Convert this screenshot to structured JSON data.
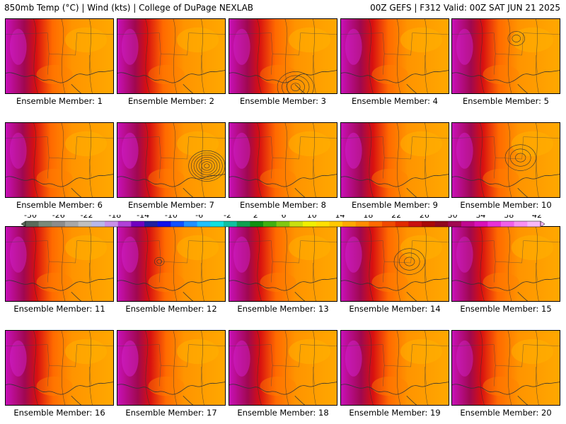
{
  "header": {
    "left_title": "850mb Temp (°C) | Wind (kts) | College of DuPage NEXLAB",
    "right_title": "00Z GEFS | F312 Valid: 00Z SAT JUN 21 2025"
  },
  "panels": [
    {
      "label": "Ensemble Member: 1",
      "warmth": 0.55,
      "vortex": "none"
    },
    {
      "label": "Ensemble Member: 2",
      "warmth": 0.45,
      "vortex": "none"
    },
    {
      "label": "Ensemble Member: 3",
      "warmth": 0.5,
      "vortex": "south"
    },
    {
      "label": "Ensemble Member: 4",
      "warmth": 0.6,
      "vortex": "none"
    },
    {
      "label": "Ensemble Member: 5",
      "warmth": 0.55,
      "vortex": "north"
    },
    {
      "label": "Ensemble Member: 6",
      "warmth": 0.4,
      "vortex": "none"
    },
    {
      "label": "Ensemble Member: 7",
      "warmth": 0.65,
      "vortex": "strong"
    },
    {
      "label": "Ensemble Member: 8",
      "warmth": 0.5,
      "vortex": "none"
    },
    {
      "label": "Ensemble Member: 9",
      "warmth": 0.65,
      "vortex": "none"
    },
    {
      "label": "Ensemble Member: 10",
      "warmth": 0.55,
      "vortex": "center"
    },
    {
      "label": "Ensemble Member: 11",
      "warmth": 0.5,
      "vortex": "none"
    },
    {
      "label": "Ensemble Member: 12",
      "warmth": 0.6,
      "vortex": "small"
    },
    {
      "label": "Ensemble Member: 13",
      "warmth": 0.55,
      "vortex": "none"
    },
    {
      "label": "Ensemble Member: 14",
      "warmth": 0.6,
      "vortex": "center"
    },
    {
      "label": "Ensemble Member: 15",
      "warmth": 0.45,
      "vortex": "none"
    },
    {
      "label": "Ensemble Member: 16",
      "warmth": 0.6,
      "vortex": "none"
    },
    {
      "label": "Ensemble Member: 17",
      "warmth": 0.7,
      "vortex": "none"
    },
    {
      "label": "Ensemble Member: 18",
      "warmth": 0.55,
      "vortex": "none"
    },
    {
      "label": "Ensemble Member: 19",
      "warmth": 0.65,
      "vortex": "none"
    },
    {
      "label": "Ensemble Member: 20",
      "warmth": 0.45,
      "vortex": "none"
    }
  ],
  "colorbar": {
    "ticks": [
      "-30",
      "-26",
      "-22",
      "-18",
      "-14",
      "-10",
      "-6",
      "-2",
      "2",
      "6",
      "10",
      "14",
      "18",
      "22",
      "26",
      "30",
      "34",
      "38",
      "42"
    ],
    "colors": [
      "#5a6a5a",
      "#7a8a7a",
      "#8c8c8c",
      "#a8a8a8",
      "#c0c0c0",
      "#b8b8e8",
      "#c890e8",
      "#b040d8",
      "#7000c0",
      "#2020a0",
      "#1010e8",
      "#1050ff",
      "#2090ff",
      "#20c0ff",
      "#10e0e0",
      "#10c0a0",
      "#10a050",
      "#109010",
      "#40b010",
      "#80c810",
      "#c8e010",
      "#f0f000",
      "#ffe000",
      "#ffc800",
      "#ffa800",
      "#ff8c00",
      "#ff6a00",
      "#f04a00",
      "#e02a00",
      "#c81010",
      "#a80808",
      "#900820",
      "#a00850",
      "#c00890",
      "#d810b8",
      "#e830d8",
      "#f060e8",
      "#f890f0",
      "#f8b8f8"
    ]
  }
}
